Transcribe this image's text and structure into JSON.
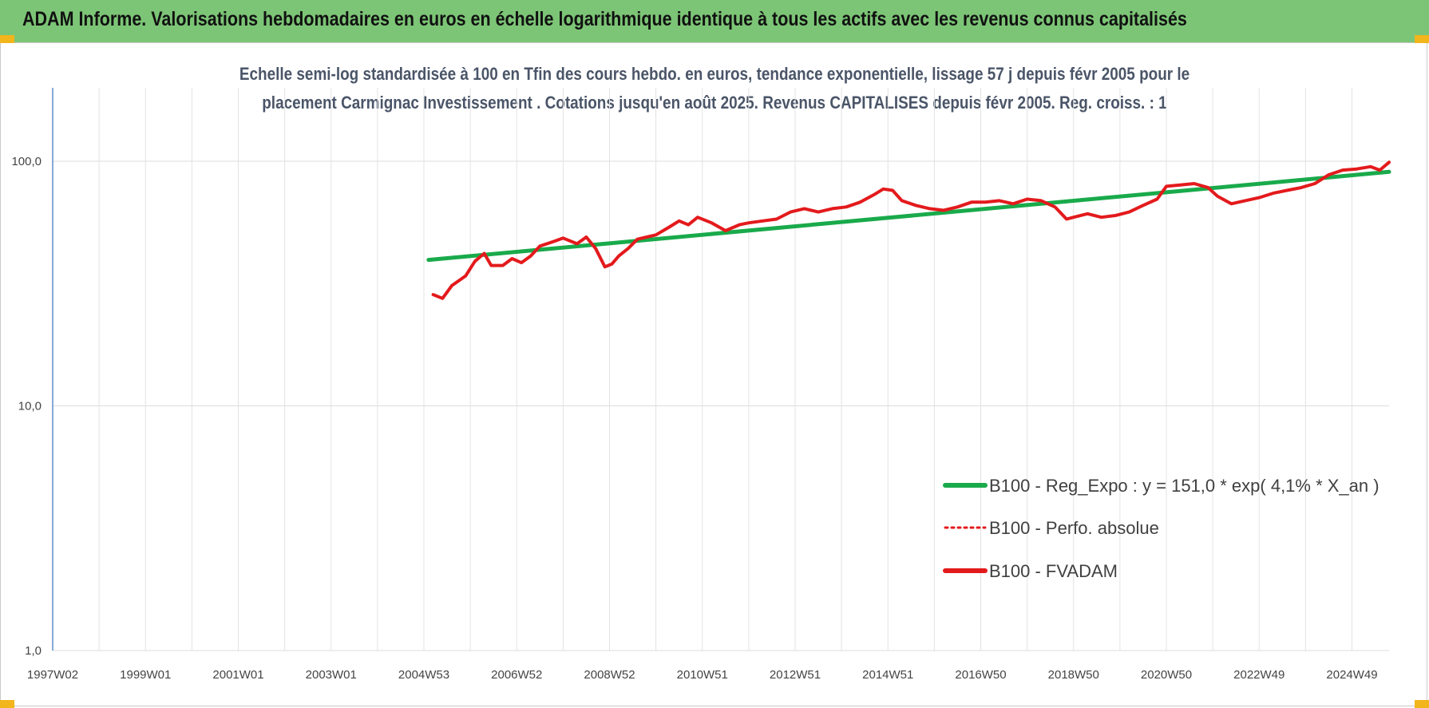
{
  "header": {
    "title": "ADAM Informe. Valorisations hebdomadaires en euros en échelle logarithmique identique à tous les actifs avec les revenus connus capitalisés"
  },
  "chart_data": {
    "type": "line",
    "title_line1": "Echelle semi-log standardisée à 100 en Tfin des cours hebdo. en euros, tendance exponentielle, lissage 57 j depuis févr 2005 pour le",
    "title_line2": "placement Carmignac Investissement . Cotations jusqu'en août 2025. Revenus CAPITALISES depuis févr 2005. Reg. croiss. : 1",
    "y_scale": "log",
    "ylim": [
      1,
      100
    ],
    "xlim": [
      1997.0,
      2025.8
    ],
    "grid": true,
    "y_ticks": [
      {
        "value": 1,
        "label": "1,0"
      },
      {
        "value": 10,
        "label": "10,0"
      },
      {
        "value": 100,
        "label": "100,0"
      }
    ],
    "x_ticks": [
      {
        "value": 1997.0,
        "label": "1997W02"
      },
      {
        "value": 1999.0,
        "label": "1999W01"
      },
      {
        "value": 2001.0,
        "label": "2001W01"
      },
      {
        "value": 2003.0,
        "label": "2003W01"
      },
      {
        "value": 2005.0,
        "label": "2004W53"
      },
      {
        "value": 2007.0,
        "label": "2006W52"
      },
      {
        "value": 2009.0,
        "label": "2008W52"
      },
      {
        "value": 2011.0,
        "label": "2010W51"
      },
      {
        "value": 2013.0,
        "label": "2012W51"
      },
      {
        "value": 2015.0,
        "label": "2014W51"
      },
      {
        "value": 2017.0,
        "label": "2016W50"
      },
      {
        "value": 2019.0,
        "label": "2018W50"
      },
      {
        "value": 2021.0,
        "label": "2020W50"
      },
      {
        "value": 2023.0,
        "label": "2022W49"
      },
      {
        "value": 2025.0,
        "label": "2024W49"
      }
    ],
    "legend_position": "bottom-right",
    "series": [
      {
        "name": "B100 - Reg_Expo : y = 151,0 * exp( 4,1% *  X_an )",
        "color": "#19aa4b",
        "style": "solid",
        "x": [
          2005.1,
          2025.8
        ],
        "y": [
          39.5,
          90.5
        ]
      },
      {
        "name": "B100 - Perfo. absolue",
        "color": "#e31a1c",
        "style": "dotted",
        "x": [],
        "y": []
      },
      {
        "name": "B100 - FVADAM",
        "color": "#e31a1c",
        "style": "solid",
        "x": [
          2005.2,
          2005.4,
          2005.6,
          2005.9,
          2006.1,
          2006.3,
          2006.45,
          2006.7,
          2006.9,
          2007.1,
          2007.3,
          2007.5,
          2007.8,
          2008.0,
          2008.3,
          2008.5,
          2008.7,
          2008.9,
          2009.05,
          2009.2,
          2009.4,
          2009.6,
          2009.8,
          2010.0,
          2010.3,
          2010.5,
          2010.7,
          2010.9,
          2011.2,
          2011.5,
          2011.8,
          2012.0,
          2012.3,
          2012.6,
          2012.9,
          2013.2,
          2013.5,
          2013.8,
          2014.1,
          2014.4,
          2014.7,
          2014.9,
          2015.1,
          2015.3,
          2015.6,
          2015.9,
          2016.2,
          2016.5,
          2016.8,
          2017.1,
          2017.4,
          2017.7,
          2018.0,
          2018.3,
          2018.6,
          2018.85,
          2019.0,
          2019.3,
          2019.6,
          2019.9,
          2020.2,
          2020.5,
          2020.8,
          2021.0,
          2021.3,
          2021.6,
          2021.9,
          2022.1,
          2022.4,
          2022.7,
          2023.0,
          2023.3,
          2023.6,
          2023.9,
          2024.2,
          2024.5,
          2024.8,
          2025.1,
          2025.4,
          2025.6,
          2025.8
        ],
        "y": [
          28.5,
          27.5,
          31,
          34,
          39,
          42,
          37.5,
          37.5,
          40,
          38.5,
          41,
          45,
          47,
          48.5,
          46,
          49,
          44,
          37,
          38,
          41,
          44,
          48,
          49,
          50,
          54,
          57,
          55,
          59,
          56,
          52,
          55,
          56,
          57,
          58,
          62,
          64,
          62,
          64,
          65,
          68,
          73,
          77,
          76,
          69,
          66,
          64,
          63,
          65,
          68,
          68,
          69,
          67,
          70,
          69,
          65,
          58,
          59,
          61,
          59,
          60,
          62,
          66,
          70,
          79,
          80,
          81,
          78,
          72,
          67,
          69,
          71,
          74,
          76,
          78,
          81,
          88,
          92,
          93,
          95,
          92,
          99
        ]
      }
    ]
  }
}
